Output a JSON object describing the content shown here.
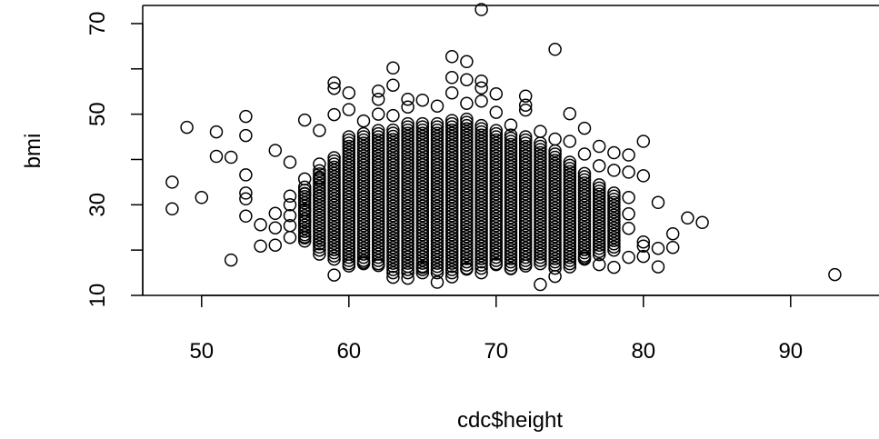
{
  "chart_data": {
    "type": "scatter",
    "title": "",
    "xlabel": "cdc$height",
    "ylabel": "bmi",
    "xlim": [
      46,
      96
    ],
    "ylim": [
      10,
      74
    ],
    "x_ticks": [
      50,
      60,
      70,
      80,
      90
    ],
    "y_ticks": [
      10,
      30,
      50,
      70
    ],
    "y_minor_ticks": [
      20,
      40,
      60
    ],
    "grid": false,
    "marker": "open-circle",
    "color": "#000000",
    "points": [
      [
        48,
        35.0
      ],
      [
        48,
        29.1
      ],
      [
        49,
        47.1
      ],
      [
        50,
        31.6
      ],
      [
        51,
        46.1
      ],
      [
        51,
        40.7
      ],
      [
        52,
        40.5
      ],
      [
        52,
        17.8
      ],
      [
        53,
        49.5
      ],
      [
        53,
        45.3
      ],
      [
        53,
        36.6
      ],
      [
        53,
        32.6
      ],
      [
        53,
        31.3
      ],
      [
        53,
        27.5
      ],
      [
        54,
        25.6
      ],
      [
        54,
        20.9
      ],
      [
        55,
        42.0
      ],
      [
        55,
        28.1
      ],
      [
        55,
        24.9
      ],
      [
        55,
        21.1
      ],
      [
        56,
        39.4
      ],
      [
        56,
        31.9
      ],
      [
        56,
        30.0
      ],
      [
        56,
        27.6
      ],
      [
        56,
        25.4
      ],
      [
        56,
        22.8
      ],
      [
        57,
        48.7
      ],
      [
        57,
        35.7
      ],
      [
        57,
        32.4
      ],
      [
        57,
        28.8
      ],
      [
        57,
        26.3
      ],
      [
        57,
        22.9
      ],
      [
        58,
        46.4
      ],
      [
        58,
        39.0
      ],
      [
        58,
        35.8
      ],
      [
        58,
        31.9
      ],
      [
        58,
        21.4
      ],
      [
        58,
        19.1
      ],
      [
        59,
        56.9
      ],
      [
        59,
        55.7
      ],
      [
        59,
        49.9
      ],
      [
        59,
        14.5
      ],
      [
        60,
        54.7
      ],
      [
        60,
        51.0
      ],
      [
        60,
        16.5
      ],
      [
        61,
        48.5
      ],
      [
        61,
        17.3
      ],
      [
        62,
        55.1
      ],
      [
        62,
        53.3
      ],
      [
        62,
        50.0
      ],
      [
        62,
        16.6
      ],
      [
        63,
        60.2
      ],
      [
        63,
        56.4
      ],
      [
        63,
        49.7
      ],
      [
        63,
        14.0
      ],
      [
        64,
        53.3
      ],
      [
        64,
        51.6
      ],
      [
        64,
        13.8
      ],
      [
        65,
        53.1
      ],
      [
        65,
        16.2
      ],
      [
        66,
        51.8
      ],
      [
        66,
        12.9
      ],
      [
        67,
        62.7
      ],
      [
        67,
        58.1
      ],
      [
        67,
        54.7
      ],
      [
        67,
        14.1
      ],
      [
        68,
        61.6
      ],
      [
        68,
        57.6
      ],
      [
        68,
        52.4
      ],
      [
        68,
        15.8
      ],
      [
        69,
        73.1
      ],
      [
        69,
        57.3
      ],
      [
        69,
        55.8
      ],
      [
        69,
        52.9
      ],
      [
        69,
        15.0
      ],
      [
        70,
        54.5
      ],
      [
        70,
        50.4
      ],
      [
        70,
        16.8
      ],
      [
        71,
        47.6
      ],
      [
        71,
        15.9
      ],
      [
        72,
        54.0
      ],
      [
        72,
        52.0
      ],
      [
        72,
        50.9
      ],
      [
        72,
        16.5
      ],
      [
        73,
        46.2
      ],
      [
        73,
        12.4
      ],
      [
        74,
        64.3
      ],
      [
        74,
        44.5
      ],
      [
        74,
        14.2
      ],
      [
        75,
        50.1
      ],
      [
        75,
        44.0
      ],
      [
        75,
        16.3
      ],
      [
        76,
        46.9
      ],
      [
        76,
        41.2
      ],
      [
        76,
        18.3
      ],
      [
        77,
        42.9
      ],
      [
        77,
        38.6
      ],
      [
        77,
        16.8
      ],
      [
        78,
        41.5
      ],
      [
        78,
        37.6
      ],
      [
        78,
        16.2
      ],
      [
        79,
        41.0
      ],
      [
        79,
        37.2
      ],
      [
        79,
        31.6
      ],
      [
        79,
        28.0
      ],
      [
        79,
        24.8
      ],
      [
        79,
        18.4
      ],
      [
        80,
        44.0
      ],
      [
        80,
        36.4
      ],
      [
        80,
        21.8
      ],
      [
        80,
        20.9
      ],
      [
        80,
        18.6
      ],
      [
        81,
        30.5
      ],
      [
        81,
        20.4
      ],
      [
        81,
        16.3
      ],
      [
        82,
        23.6
      ],
      [
        82,
        20.6
      ],
      [
        83,
        27.1
      ],
      [
        84,
        26.1
      ],
      [
        93,
        14.6
      ]
    ],
    "dense_band": {
      "note": "core of the cloud",
      "x_values": [
        57,
        58,
        59,
        60,
        61,
        62,
        63,
        64,
        65,
        66,
        67,
        68,
        69,
        70,
        71,
        72,
        73,
        74,
        75,
        76,
        77,
        78
      ],
      "y_low": [
        22,
        20,
        18,
        17,
        17,
        17,
        15,
        15,
        15,
        15,
        15,
        16,
        16,
        17,
        16,
        17,
        17,
        16,
        17,
        18,
        19,
        20
      ],
      "y_high": [
        34,
        38,
        41,
        45,
        46,
        47,
        47,
        48,
        48,
        48,
        49,
        49,
        48,
        47,
        46,
        45,
        44,
        42,
        40,
        37,
        35,
        33
      ]
    }
  }
}
